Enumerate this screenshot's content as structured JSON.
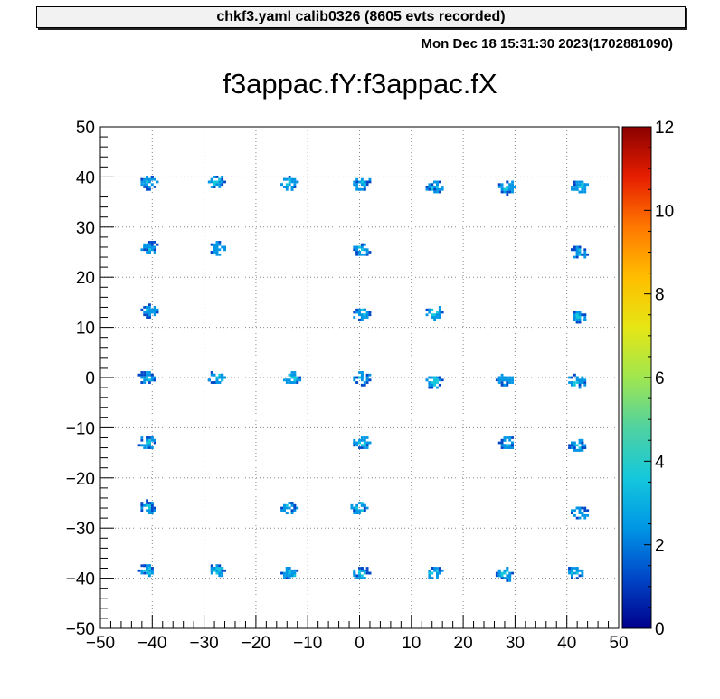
{
  "header": {
    "caption": "chkf3.yaml  calib0326 (8605 evts recorded)",
    "timestamp": "Mon Dec 18 15:31:30 2023(1702881090)"
  },
  "chart_data": {
    "type": "heatmap",
    "title": "f3appac.fY:f3appac.fX",
    "xlabel": "",
    "ylabel": "",
    "xlim": [
      -50,
      50
    ],
    "ylim": [
      -50,
      50
    ],
    "x_ticks": [
      "−50",
      "−40",
      "−30",
      "−20",
      "−10",
      "0",
      "10",
      "20",
      "30",
      "40",
      "50"
    ],
    "y_ticks": [
      "−50",
      "−40",
      "−30",
      "−20",
      "−10",
      "0",
      "10",
      "20",
      "30",
      "40",
      "50"
    ],
    "x_tick_values": [
      -50,
      -40,
      -30,
      -20,
      -10,
      0,
      10,
      20,
      30,
      40,
      50
    ],
    "y_tick_values": [
      -50,
      -40,
      -30,
      -20,
      -10,
      0,
      10,
      20,
      30,
      40,
      50
    ],
    "grid": true,
    "colorbar": {
      "range": [
        0,
        12
      ],
      "ticks": [
        "0",
        "2",
        "4",
        "6",
        "8",
        "10",
        "12"
      ],
      "tick_values": [
        0,
        2,
        4,
        6,
        8,
        10,
        12
      ],
      "palette": [
        "#00008b",
        "#0046c8",
        "#0096e6",
        "#14c8dc",
        "#50d2a0",
        "#a0e650",
        "#e6e614",
        "#ffbe00",
        "#ff7800",
        "#e61e00",
        "#8b0000"
      ]
    },
    "clusters": [
      {
        "x": -40.5,
        "y": 38.8,
        "counts": 2.5
      },
      {
        "x": -27.5,
        "y": 39.0,
        "counts": 2.5
      },
      {
        "x": -13.5,
        "y": 38.8,
        "counts": 2.8
      },
      {
        "x": 0.5,
        "y": 38.7,
        "counts": 2.5
      },
      {
        "x": 14.5,
        "y": 38.0,
        "counts": 2.5
      },
      {
        "x": 28.5,
        "y": 38.0,
        "counts": 2.5
      },
      {
        "x": 42.5,
        "y": 38.0,
        "counts": 2.6
      },
      {
        "x": -40.5,
        "y": 26.0,
        "counts": 2.6
      },
      {
        "x": -27.5,
        "y": 25.8,
        "counts": 2.5
      },
      {
        "x": 0.5,
        "y": 25.5,
        "counts": 2.4
      },
      {
        "x": 42.5,
        "y": 25.0,
        "counts": 2.5
      },
      {
        "x": -40.5,
        "y": 13.2,
        "counts": 2.6
      },
      {
        "x": 0.5,
        "y": 12.5,
        "counts": 2.6
      },
      {
        "x": 14.5,
        "y": 12.8,
        "counts": 2.8
      },
      {
        "x": 42.5,
        "y": 12.0,
        "counts": 2.6
      },
      {
        "x": -41.0,
        "y": 0.0,
        "counts": 2.6
      },
      {
        "x": -27.5,
        "y": -0.2,
        "counts": 2.6
      },
      {
        "x": -13.0,
        "y": -0.3,
        "counts": 2.8
      },
      {
        "x": 0.5,
        "y": -0.2,
        "counts": 2.6
      },
      {
        "x": 14.5,
        "y": -0.8,
        "counts": 2.8
      },
      {
        "x": 28.0,
        "y": -0.5,
        "counts": 2.5
      },
      {
        "x": 42.0,
        "y": -0.8,
        "counts": 2.5
      },
      {
        "x": -41.0,
        "y": -13.0,
        "counts": 2.6
      },
      {
        "x": 0.5,
        "y": -13.0,
        "counts": 2.8
      },
      {
        "x": 28.5,
        "y": -13.0,
        "counts": 2.5
      },
      {
        "x": 42.0,
        "y": -13.5,
        "counts": 2.4
      },
      {
        "x": -41.0,
        "y": -25.8,
        "counts": 2.5
      },
      {
        "x": -13.5,
        "y": -26.0,
        "counts": 2.6
      },
      {
        "x": 0.0,
        "y": -26.0,
        "counts": 2.8
      },
      {
        "x": 42.5,
        "y": -27.0,
        "counts": 2.6
      },
      {
        "x": -41.0,
        "y": -38.5,
        "counts": 2.5
      },
      {
        "x": -27.5,
        "y": -38.5,
        "counts": 2.5
      },
      {
        "x": -13.5,
        "y": -39.0,
        "counts": 2.6
      },
      {
        "x": 0.5,
        "y": -39.0,
        "counts": 2.6
      },
      {
        "x": 14.5,
        "y": -39.0,
        "counts": 2.8
      },
      {
        "x": 28.0,
        "y": -39.2,
        "counts": 2.8
      },
      {
        "x": 41.5,
        "y": -39.0,
        "counts": 2.6
      }
    ]
  }
}
